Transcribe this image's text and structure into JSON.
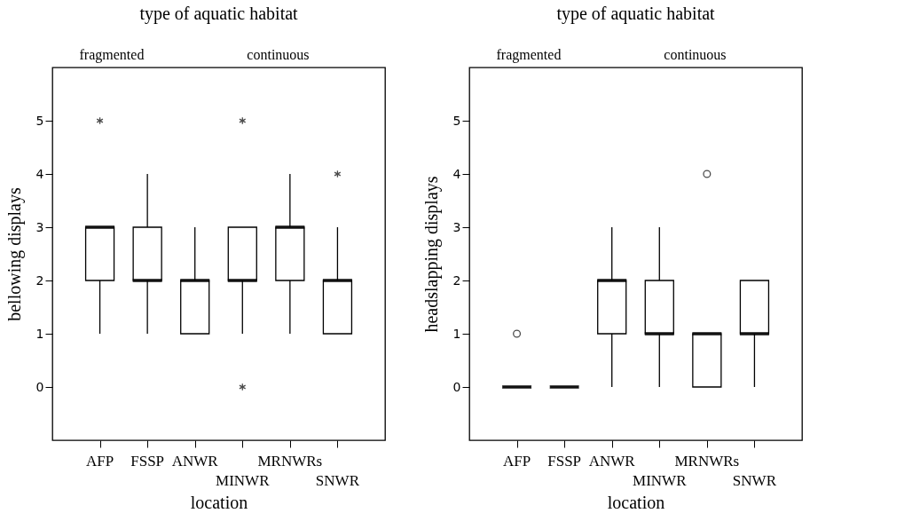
{
  "chart_data": [
    {
      "type": "box",
      "title": "type of aquatic habitat",
      "annotations": [
        "fragmented",
        "continuous"
      ],
      "xlabel": "location",
      "ylabel": "bellowing displays",
      "categories": [
        "AFP",
        "FSSP",
        "ANWR",
        "MINWR",
        "MRNWRs",
        "SNWR"
      ],
      "boxes": [
        {
          "low": 1,
          "q1": 2,
          "median": 3,
          "q3": 3,
          "high": 3,
          "outliers": [
            5
          ]
        },
        {
          "low": 1,
          "q1": 2,
          "median": 2,
          "q3": 3,
          "high": 4
        },
        {
          "low": 1,
          "q1": 1,
          "median": 2,
          "q3": 2,
          "high": 3
        },
        {
          "low": 1,
          "q1": 2,
          "median": 2,
          "q3": 3,
          "high": 3,
          "outliers": [
            5,
            0
          ]
        },
        {
          "low": 1,
          "q1": 2,
          "median": 3,
          "q3": 3,
          "high": 4
        },
        {
          "low": 1,
          "q1": 1,
          "median": 2,
          "q3": 2,
          "high": 3,
          "outliers": [
            4
          ]
        }
      ],
      "ylim": [
        -1,
        6
      ],
      "yticks": [
        0,
        1,
        2,
        3,
        4,
        5
      ],
      "grid": false,
      "marker": "star"
    },
    {
      "type": "box",
      "title": "type of aquatic habitat",
      "annotations": [
        "fragmented",
        "continuous"
      ],
      "xlabel": "location",
      "ylabel": "headslapping displays",
      "categories": [
        "AFP",
        "FSSP",
        "ANWR",
        "MINWR",
        "MRNWRs",
        "SNWR"
      ],
      "boxes": [
        {
          "low": 0,
          "q1": 0,
          "median": 0,
          "q3": 0,
          "high": 0,
          "outliers": [
            1
          ]
        },
        {
          "low": 0,
          "q1": 0,
          "median": 0,
          "q3": 0,
          "high": 0
        },
        {
          "low": 0,
          "q1": 1,
          "median": 2,
          "q3": 2,
          "high": 3
        },
        {
          "low": 0,
          "q1": 1,
          "median": 1,
          "q3": 2,
          "high": 3
        },
        {
          "low": 0,
          "q1": 0,
          "median": 1,
          "q3": 1,
          "high": 1,
          "outliers": [
            4
          ]
        },
        {
          "low": 0,
          "q1": 1,
          "median": 1,
          "q3": 2,
          "high": 2
        }
      ],
      "ylim": [
        -1,
        6
      ],
      "yticks": [
        0,
        1,
        2,
        3,
        4,
        5
      ],
      "grid": false,
      "marker": "circle"
    }
  ]
}
